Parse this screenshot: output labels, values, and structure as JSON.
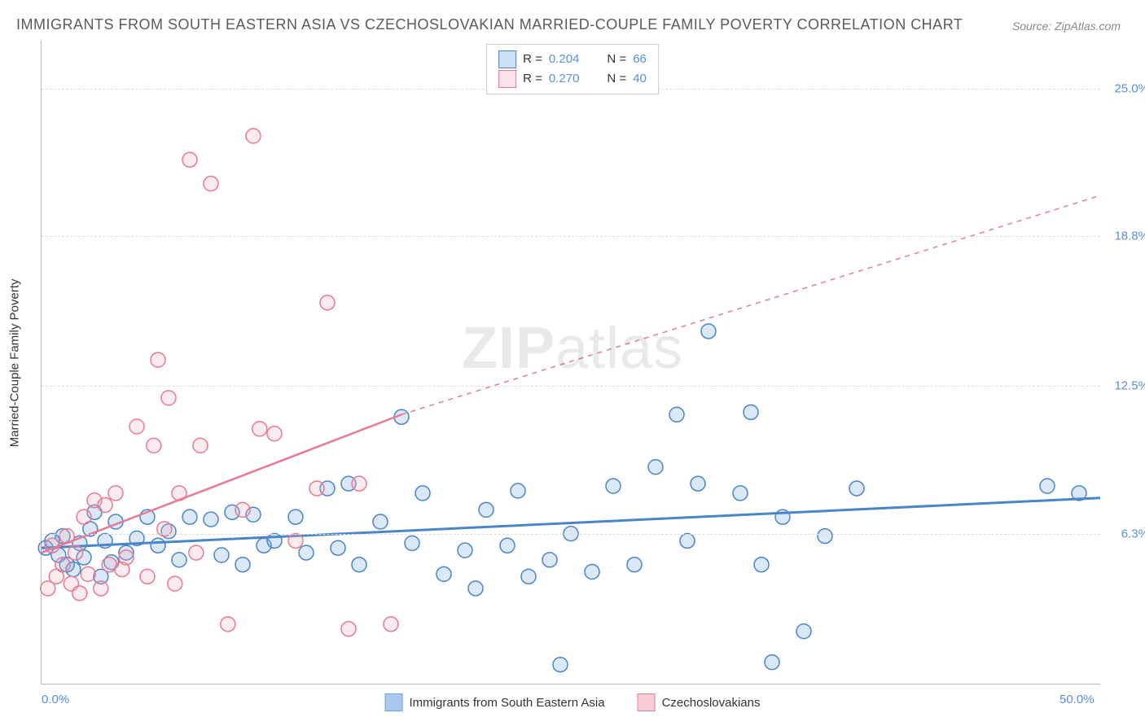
{
  "title": "IMMIGRANTS FROM SOUTH EASTERN ASIA VS CZECHOSLOVAKIAN MARRIED-COUPLE FAMILY POVERTY CORRELATION CHART",
  "source": "Source: ZipAtlas.com",
  "watermark_left": "ZIP",
  "watermark_right": "atlas",
  "y_axis_label": "Married-Couple Family Poverty",
  "chart": {
    "type": "scatter",
    "xlim": [
      0,
      50
    ],
    "ylim": [
      0,
      27
    ],
    "x_ticks": [
      {
        "value": 0,
        "label": "0.0%"
      },
      {
        "value": 50,
        "label": "50.0%"
      }
    ],
    "y_ticks": [
      {
        "value": 6.3,
        "label": "6.3%"
      },
      {
        "value": 12.5,
        "label": "12.5%"
      },
      {
        "value": 18.8,
        "label": "18.8%"
      },
      {
        "value": 25.0,
        "label": "25.0%"
      }
    ],
    "grid_color": "#dddddd",
    "background_color": "#ffffff",
    "marker_radius": 9,
    "marker_stroke_width": 1.5,
    "marker_fill_opacity": 0.25,
    "series": [
      {
        "name": "Immigrants from South Eastern Asia",
        "color": "#6aa3e0",
        "stroke": "#4a85c9",
        "r": 0.204,
        "n": 66,
        "points": [
          [
            0.2,
            5.7
          ],
          [
            0.5,
            6.0
          ],
          [
            0.8,
            5.4
          ],
          [
            1.0,
            6.2
          ],
          [
            1.2,
            5.0
          ],
          [
            1.5,
            4.8
          ],
          [
            1.8,
            5.9
          ],
          [
            2.0,
            5.3
          ],
          [
            2.3,
            6.5
          ],
          [
            2.5,
            7.2
          ],
          [
            2.8,
            4.5
          ],
          [
            3.0,
            6.0
          ],
          [
            3.3,
            5.1
          ],
          [
            3.5,
            6.8
          ],
          [
            4.0,
            5.5
          ],
          [
            4.5,
            6.1
          ],
          [
            5.0,
            7.0
          ],
          [
            5.5,
            5.8
          ],
          [
            6.0,
            6.4
          ],
          [
            6.5,
            5.2
          ],
          [
            7.0,
            7.0
          ],
          [
            8.0,
            6.9
          ],
          [
            8.5,
            5.4
          ],
          [
            9.0,
            7.2
          ],
          [
            9.5,
            5.0
          ],
          [
            10.0,
            7.1
          ],
          [
            10.5,
            5.8
          ],
          [
            11.0,
            6.0
          ],
          [
            12.0,
            7.0
          ],
          [
            12.5,
            5.5
          ],
          [
            13.5,
            8.2
          ],
          [
            14.0,
            5.7
          ],
          [
            14.5,
            8.4
          ],
          [
            15.0,
            5.0
          ],
          [
            16.0,
            6.8
          ],
          [
            17.0,
            11.2
          ],
          [
            17.5,
            5.9
          ],
          [
            18.0,
            8.0
          ],
          [
            19.0,
            4.6
          ],
          [
            20.0,
            5.6
          ],
          [
            20.5,
            4.0
          ],
          [
            21.0,
            7.3
          ],
          [
            22.0,
            5.8
          ],
          [
            22.5,
            8.1
          ],
          [
            23.0,
            4.5
          ],
          [
            24.0,
            5.2
          ],
          [
            24.5,
            0.8
          ],
          [
            25.0,
            6.3
          ],
          [
            26.0,
            4.7
          ],
          [
            27.0,
            8.3
          ],
          [
            28.0,
            5.0
          ],
          [
            29.0,
            9.1
          ],
          [
            30.0,
            11.3
          ],
          [
            30.5,
            6.0
          ],
          [
            31.0,
            8.4
          ],
          [
            31.5,
            14.8
          ],
          [
            33.0,
            8.0
          ],
          [
            33.5,
            11.4
          ],
          [
            34.0,
            5.0
          ],
          [
            34.5,
            0.9
          ],
          [
            35.0,
            7.0
          ],
          [
            36.0,
            2.2
          ],
          [
            37.0,
            6.2
          ],
          [
            38.5,
            8.2
          ],
          [
            47.5,
            8.3
          ],
          [
            49.0,
            8.0
          ]
        ],
        "trend": {
          "solid_from": [
            0,
            5.7
          ],
          "solid_to": [
            50,
            7.8
          ],
          "dashed_from": null,
          "dashed_to": null,
          "line_width": 3
        }
      },
      {
        "name": "Czechoslovakians",
        "color": "#f4aebc",
        "stroke": "#e77a94",
        "r": 0.27,
        "n": 40,
        "points": [
          [
            0.3,
            4.0
          ],
          [
            0.5,
            5.8
          ],
          [
            0.7,
            4.5
          ],
          [
            1.0,
            5.0
          ],
          [
            1.2,
            6.2
          ],
          [
            1.4,
            4.2
          ],
          [
            1.6,
            5.5
          ],
          [
            1.8,
            3.8
          ],
          [
            2.0,
            7.0
          ],
          [
            2.2,
            4.6
          ],
          [
            2.5,
            7.7
          ],
          [
            2.8,
            4.0
          ],
          [
            3.0,
            7.5
          ],
          [
            3.2,
            5.0
          ],
          [
            3.5,
            8.0
          ],
          [
            3.8,
            4.8
          ],
          [
            4.0,
            5.3
          ],
          [
            4.5,
            10.8
          ],
          [
            5.0,
            4.5
          ],
          [
            5.3,
            10.0
          ],
          [
            5.5,
            13.6
          ],
          [
            5.8,
            6.5
          ],
          [
            6.0,
            12.0
          ],
          [
            6.3,
            4.2
          ],
          [
            6.5,
            8.0
          ],
          [
            7.0,
            22.0
          ],
          [
            7.3,
            5.5
          ],
          [
            7.5,
            10.0
          ],
          [
            8.0,
            21.0
          ],
          [
            8.8,
            2.5
          ],
          [
            9.5,
            7.3
          ],
          [
            10.0,
            23.0
          ],
          [
            10.3,
            10.7
          ],
          [
            11.0,
            10.5
          ],
          [
            12.0,
            6.0
          ],
          [
            13.0,
            8.2
          ],
          [
            13.5,
            16.0
          ],
          [
            14.5,
            2.3
          ],
          [
            15.0,
            8.4
          ],
          [
            16.5,
            2.5
          ]
        ],
        "trend": {
          "solid_from": [
            0,
            5.5
          ],
          "solid_to": [
            17,
            11.3
          ],
          "dashed_from": [
            17,
            11.3
          ],
          "dashed_to": [
            50,
            20.5
          ],
          "line_width": 2.5
        }
      }
    ]
  },
  "legend_top": {
    "r_label": "R =",
    "n_label": "N ="
  },
  "legend_bottom": {
    "items": [
      {
        "label": "Immigrants from South Eastern Asia",
        "color": "#a9c8ec",
        "border": "#6aa3e0"
      },
      {
        "label": "Czechoslovakians",
        "color": "#f9cdd7",
        "border": "#e77a94"
      }
    ]
  }
}
